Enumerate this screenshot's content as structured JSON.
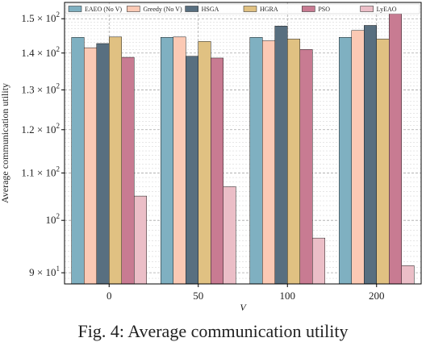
{
  "caption": "Fig. 4: Average communication utility",
  "chart_data": {
    "type": "bar",
    "xlabel": "V",
    "ylabel": "Average communication utility",
    "yscale": "log",
    "ylim": [
      88,
      155
    ],
    "grid": true,
    "legend_position": "top",
    "categories": [
      "0",
      "50",
      "100",
      "200"
    ],
    "yticks": [
      {
        "value": 90,
        "label": "9 × 10^1"
      },
      {
        "value": 100,
        "label": "10^2"
      },
      {
        "value": 110,
        "label": "1.1 × 10^2"
      },
      {
        "value": 120,
        "label": "1.2 × 10^2"
      },
      {
        "value": 130,
        "label": "1.3 × 10^2"
      },
      {
        "value": 140,
        "label": "1.4 × 10^2"
      },
      {
        "value": 150,
        "label": "1.5 × 10^2"
      }
    ],
    "series": [
      {
        "name": "EAEO (No V)",
        "color": "#7fb0c1",
        "values": [
          144.5,
          144.5,
          144.5,
          144.5
        ]
      },
      {
        "name": "Greedy (No V)",
        "color": "#fbc9b4",
        "values": [
          141.5,
          144.6,
          143.5,
          146.5
        ]
      },
      {
        "name": "HSGA",
        "color": "#586f80",
        "values": [
          142.7,
          139.1,
          147.8,
          148.0
        ]
      },
      {
        "name": "HGRA",
        "color": "#e0c182",
        "values": [
          144.6,
          143.3,
          144.0,
          144.0
        ]
      },
      {
        "name": "PSO",
        "color": "#c87b92",
        "values": [
          138.8,
          138.6,
          141.0,
          151.5
        ]
      },
      {
        "name": "LyEAO",
        "color": "#ebbec7",
        "values": [
          105.0,
          107.0,
          96.5,
          91.3
        ]
      }
    ]
  }
}
